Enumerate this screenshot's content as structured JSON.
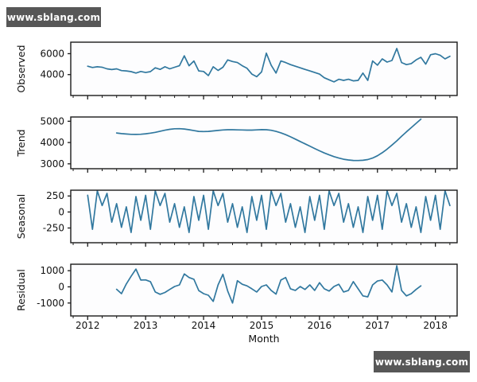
{
  "watermarks": {
    "top_left": "www.sblang.com",
    "bottom_right": "www.sblang.com"
  },
  "figure": {
    "xlabel": "Month",
    "x_tick_labels": [
      "2012",
      "2013",
      "2014",
      "2015",
      "2016",
      "2017",
      "2018"
    ],
    "x_tick_months": [
      0,
      12,
      24,
      36,
      48,
      60,
      72
    ],
    "x_minor_step_months": 3,
    "xlim_months": [
      -3.5,
      76.5
    ],
    "line_color": "#31789f",
    "spine_color": "#1a1a1a",
    "axes_background": "#fdfdfe"
  },
  "chart_data": [
    {
      "type": "line",
      "name": "observed",
      "ylabel": "Observed",
      "x_start_month": 0,
      "x_step_months": 1,
      "ylim": [
        2000,
        7100
      ],
      "yticks": [
        4000,
        6000
      ],
      "values": [
        4800,
        4680,
        4750,
        4700,
        4550,
        4480,
        4550,
        4380,
        4350,
        4280,
        4150,
        4300,
        4200,
        4280,
        4650,
        4500,
        4750,
        4550,
        4700,
        4850,
        5800,
        4850,
        5300,
        4350,
        4300,
        3900,
        4750,
        4400,
        4700,
        5400,
        5250,
        5150,
        4850,
        4600,
        4050,
        3800,
        4250,
        6050,
        4900,
        4150,
        5300,
        5150,
        4950,
        4800,
        4650,
        4500,
        4350,
        4200,
        4050,
        3700,
        3500,
        3300,
        3550,
        3450,
        3550,
        3400,
        3450,
        4150,
        3450,
        5300,
        4900,
        5500,
        5200,
        5350,
        6500,
        5150,
        4950,
        5050,
        5400,
        5650,
        5000,
        5900,
        6000,
        5850,
        5500,
        5750
      ]
    },
    {
      "type": "line",
      "name": "trend",
      "ylabel": "Trend",
      "x_start_month": 6,
      "x_step_months": 1,
      "ylim": [
        2770,
        5200
      ],
      "yticks": [
        3000,
        4000,
        5000
      ],
      "values": [
        4450,
        4420,
        4400,
        4385,
        4380,
        4390,
        4410,
        4440,
        4480,
        4530,
        4580,
        4620,
        4645,
        4650,
        4635,
        4600,
        4560,
        4525,
        4515,
        4525,
        4545,
        4570,
        4590,
        4600,
        4600,
        4595,
        4590,
        4585,
        4585,
        4595,
        4605,
        4600,
        4575,
        4525,
        4455,
        4370,
        4270,
        4160,
        4050,
        3940,
        3830,
        3720,
        3610,
        3510,
        3420,
        3340,
        3270,
        3215,
        3180,
        3160,
        3155,
        3165,
        3200,
        3270,
        3380,
        3520,
        3690,
        3880,
        4080,
        4290,
        4500,
        4700,
        4900,
        5100
      ]
    },
    {
      "type": "line",
      "name": "seasonal",
      "ylabel": "Seasonal",
      "x_start_month": 0,
      "x_step_months": 1,
      "ylim": [
        -480,
        340
      ],
      "yticks": [
        -250,
        0,
        250
      ],
      "values": [
        260,
        -270,
        330,
        100,
        290,
        -160,
        130,
        -240,
        80,
        -320,
        240,
        -130,
        260,
        -270,
        330,
        100,
        290,
        -160,
        130,
        -240,
        80,
        -320,
        240,
        -130,
        260,
        -270,
        330,
        100,
        290,
        -160,
        130,
        -240,
        80,
        -320,
        240,
        -130,
        260,
        -270,
        330,
        100,
        290,
        -160,
        130,
        -240,
        80,
        -320,
        240,
        -130,
        260,
        -270,
        330,
        100,
        290,
        -160,
        130,
        -240,
        80,
        -320,
        240,
        -130,
        260,
        -270,
        330,
        100,
        290,
        -160,
        130,
        -240,
        80,
        -320,
        240,
        -130,
        260,
        -270,
        330,
        100
      ]
    },
    {
      "type": "line",
      "name": "residual",
      "ylabel": "Residual",
      "x_start_month": 6,
      "x_step_months": 1,
      "ylim": [
        -1800,
        1400
      ],
      "yticks": [
        -1000,
        0,
        1000
      ],
      "values": [
        -150,
        -420,
        180,
        650,
        1100,
        420,
        430,
        320,
        -320,
        -460,
        -350,
        -160,
        20,
        120,
        800,
        580,
        470,
        -230,
        -420,
        -520,
        -900,
        120,
        780,
        -260,
        -1000,
        380,
        160,
        60,
        -120,
        -320,
        20,
        120,
        -220,
        -450,
        420,
        580,
        -120,
        -220,
        20,
        -160,
        120,
        -220,
        260,
        -120,
        -260,
        20,
        160,
        -320,
        -220,
        320,
        -120,
        -560,
        -620,
        120,
        360,
        420,
        120,
        -320,
        1300,
        -220,
        -560,
        -420,
        -160,
        60
      ]
    }
  ]
}
